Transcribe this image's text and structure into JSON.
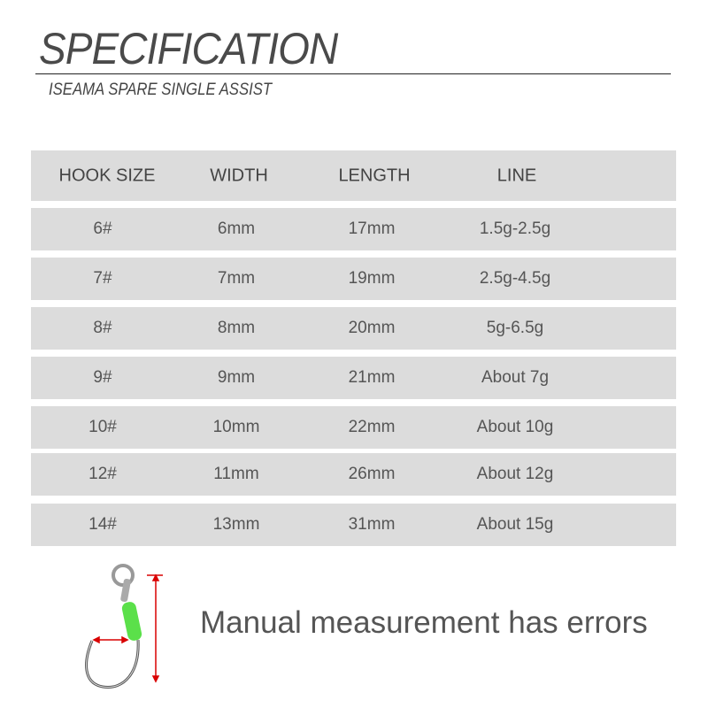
{
  "header": {
    "title": "SPECIFICATION",
    "subtitle": "ISEAMA SPARE SINGLE ASSIST"
  },
  "table": {
    "columns": [
      "HOOK SIZE",
      "WIDTH",
      "LENGTH",
      "LINE"
    ],
    "rows": [
      [
        "6#",
        "6mm",
        "17mm",
        "1.5g-2.5g"
      ],
      [
        "7#",
        "7mm",
        "19mm",
        "2.5g-4.5g"
      ],
      [
        "8#",
        "8mm",
        "20mm",
        "5g-6.5g"
      ],
      [
        "9#",
        "9mm",
        "21mm",
        "About 7g"
      ],
      [
        "10#",
        "10mm",
        "22mm",
        "About 10g"
      ],
      [
        "12#",
        "11mm",
        "26mm",
        "About 12g"
      ],
      [
        "14#",
        "13mm",
        "31mm",
        "About 15g"
      ]
    ]
  },
  "note": "Manual measurement has errors",
  "colors": {
    "row_bg": "#dcdcdc",
    "sleeve": "#5be04a",
    "arrow": "#d90000"
  }
}
